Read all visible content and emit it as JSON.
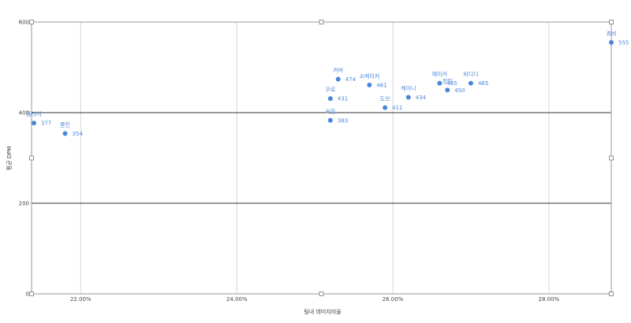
{
  "chart_data": {
    "type": "scatter",
    "xlabel": "팀내 데미지비율",
    "ylabel": "평균 DPM",
    "xlim": [
      21.37,
      28.8
    ],
    "ylim": [
      0,
      600
    ],
    "x_ticks": [
      22,
      24,
      26,
      28
    ],
    "x_tick_labels": [
      "22.00%",
      "24.00%",
      "26.00%",
      "28.00%"
    ],
    "y_ticks": [
      0,
      200,
      400,
      600
    ],
    "y_tick_labels": [
      "0",
      "200",
      "400",
      "600"
    ],
    "grid": true,
    "color": "#4a86d8",
    "points": [
      {
        "name": "플라이",
        "x": 21.4,
        "y": 377,
        "value_label": "377"
      },
      {
        "name": "줄인",
        "x": 21.8,
        "y": 354,
        "value_label": "354"
      },
      {
        "name": "커버",
        "x": 25.3,
        "y": 474,
        "value_label": "474"
      },
      {
        "name": "쿠로",
        "x": 25.2,
        "y": 431,
        "value_label": "431"
      },
      {
        "name": "욱장",
        "x": 25.2,
        "y": 383,
        "value_label": "383"
      },
      {
        "name": "소메이커",
        "x": 25.7,
        "y": 461,
        "value_label": "461"
      },
      {
        "name": "도브",
        "x": 25.9,
        "y": 411,
        "value_label": "411"
      },
      {
        "name": "케이니",
        "x": 26.2,
        "y": 434,
        "value_label": "434"
      },
      {
        "name": "페이커",
        "x": 26.6,
        "y": 465,
        "value_label": "465"
      },
      {
        "name": "정민",
        "x": 26.7,
        "y": 450,
        "value_label": "450"
      },
      {
        "name": "비디디",
        "x": 27.0,
        "y": 465,
        "value_label": "465"
      },
      {
        "name": "쵸비",
        "x": 28.8,
        "y": 555,
        "value_label": "555"
      }
    ]
  }
}
